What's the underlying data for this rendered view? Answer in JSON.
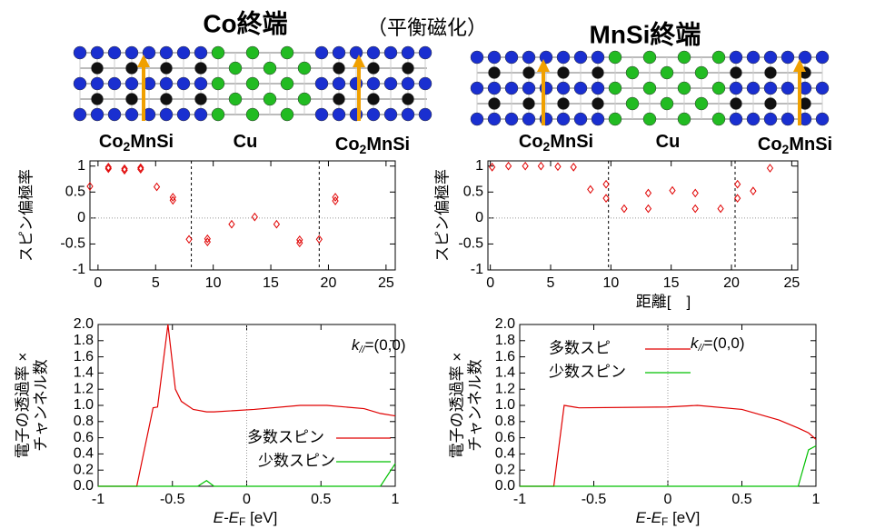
{
  "header": {
    "left_title": "Co終端",
    "center_note": "（平衡磁化）",
    "right_title": "MnSi終端"
  },
  "structures": [
    {
      "labels": [
        [
          "Co",
          "2",
          "MnSi"
        ],
        [
          "Cu"
        ],
        [
          "Co",
          "2",
          "MnSi"
        ]
      ]
    },
    {
      "labels": [
        [
          "Co",
          "2",
          "MnSi"
        ],
        [
          "Cu"
        ],
        [
          "Co",
          "2",
          "MnSi"
        ]
      ]
    }
  ],
  "chart_data": [
    {
      "type": "scatter",
      "y_label": "スピン偏極率",
      "color": "#e00000",
      "x": [
        -0.7,
        0.9,
        0.9,
        2.3,
        2.3,
        3.7,
        3.7,
        5.1,
        6.5,
        6.5,
        7.9,
        9.5,
        9.5,
        11.6,
        13.6,
        15.5,
        17.5,
        17.5,
        19.2,
        20.6,
        20.6
      ],
      "values": [
        0.61,
        0.98,
        0.95,
        0.95,
        0.92,
        0.97,
        0.94,
        0.6,
        0.4,
        0.34,
        -0.41,
        -0.4,
        -0.46,
        -0.12,
        0.02,
        -0.12,
        -0.42,
        -0.48,
        -0.41,
        0.4,
        0.33
      ],
      "vlines": [
        8.1,
        19.2
      ],
      "zero_line_y": true,
      "xlim": [
        -0.7,
        25.8
      ],
      "ylim": [
        -1,
        1.1
      ],
      "xticks": [
        0,
        5,
        10,
        15,
        20,
        25
      ],
      "yticks": [
        -1,
        -0.5,
        0,
        0.5,
        1
      ]
    },
    {
      "type": "scatter",
      "y_label": "スピン偏極率",
      "x_label": "距離[　]",
      "color": "#e00000",
      "x": [
        0.15,
        1.5,
        2.9,
        4.2,
        5.6,
        6.9,
        8.3,
        9.6,
        9.6,
        11.1,
        13.1,
        13.1,
        15.1,
        17.0,
        17.0,
        19.1,
        20.5,
        20.5,
        21.8,
        23.2
      ],
      "values": [
        0.98,
        1.0,
        1.0,
        1.0,
        0.99,
        0.98,
        0.55,
        0.65,
        0.38,
        0.18,
        0.48,
        0.18,
        0.53,
        0.48,
        0.18,
        0.18,
        0.65,
        0.38,
        0.52,
        0.96
      ],
      "vlines": [
        9.8,
        20.3
      ],
      "zero_line_y": true,
      "xlim": [
        -0.2,
        25.5
      ],
      "ylim": [
        -1,
        1.1
      ],
      "xticks": [
        0,
        5,
        10,
        15,
        20,
        25
      ],
      "yticks": [
        -1,
        -0.5,
        0,
        0.5,
        1
      ]
    },
    {
      "type": "line",
      "y_label": [
        "電子の透過率 ×",
        "チャンネル数"
      ],
      "x_label": {
        "main": "E-E",
        "sub": "F",
        "unit": " [eV]"
      },
      "annotation": {
        "k": "k",
        "sub": "//",
        "rest": "=(0,0)"
      },
      "legend": "lower right",
      "zero_line_x": true,
      "x": [
        -1,
        -0.74,
        -0.63,
        -0.6,
        -0.53,
        -0.48,
        -0.44,
        -0.36,
        -0.33,
        -0.27,
        -0.22,
        0.05,
        0.36,
        0.54,
        0.79,
        0.9,
        1
      ],
      "series": [
        {
          "name": "多数スピン",
          "color": "#e00000",
          "values": [
            0,
            0,
            0.97,
            0.98,
            2.0,
            1.2,
            1.05,
            0.95,
            0.94,
            0.92,
            0.92,
            0.95,
            1.0,
            1.0,
            0.96,
            0.9,
            0.87
          ]
        },
        {
          "name": "少数スピン",
          "color": "#00c000",
          "values": [
            0,
            0,
            0,
            0,
            0,
            0,
            0,
            0,
            0,
            0.07,
            0,
            0,
            0,
            0,
            0,
            0,
            0.28
          ]
        }
      ],
      "xlim": [
        -1,
        1
      ],
      "ylim": [
        0,
        2
      ],
      "xticks": [
        -1,
        -0.5,
        0,
        0.5,
        1
      ],
      "yticks": [
        {
          "value": 0,
          "label": "0.0"
        },
        0.2,
        0.4,
        0.6,
        0.8,
        {
          "value": 1,
          "label": "1.0"
        },
        1.2,
        1.4,
        1.6,
        1.8,
        {
          "value": 2,
          "label": "2.0"
        }
      ]
    },
    {
      "type": "line",
      "y_label": [
        "電子の透過率 ×",
        "チャンネル数"
      ],
      "x_label": {
        "main": "E-E",
        "sub": "F",
        "unit": " [eV]"
      },
      "annotation": {
        "k": "k",
        "sub": "//",
        "rest": "=(0,0)"
      },
      "legend": "upper left",
      "zero_line_x": true,
      "x": [
        -1,
        -0.77,
        -0.7,
        -0.6,
        0,
        0.2,
        0.5,
        0.75,
        0.88,
        0.95,
        1
      ],
      "series": [
        {
          "name": "多数スピ",
          "color": "#e00000",
          "values": [
            0,
            0,
            1.0,
            0.97,
            0.98,
            1.0,
            0.95,
            0.82,
            0.72,
            0.66,
            0.58
          ]
        },
        {
          "name": "少数スピン",
          "color": "#00c000",
          "values": [
            0,
            0,
            0,
            0,
            0,
            0,
            0,
            0,
            0,
            0.45,
            0.5
          ]
        }
      ],
      "xlim": [
        -1,
        1
      ],
      "ylim": [
        0,
        2
      ],
      "xticks": [
        -1,
        -0.5,
        0,
        0.5,
        1
      ],
      "yticks": [
        {
          "value": 0,
          "label": "0.0"
        },
        0.2,
        0.4,
        0.6,
        0.8,
        {
          "value": 1,
          "label": "1.0"
        },
        1.2,
        1.4,
        1.6,
        1.8,
        {
          "value": 2,
          "label": "2.0"
        }
      ]
    }
  ]
}
